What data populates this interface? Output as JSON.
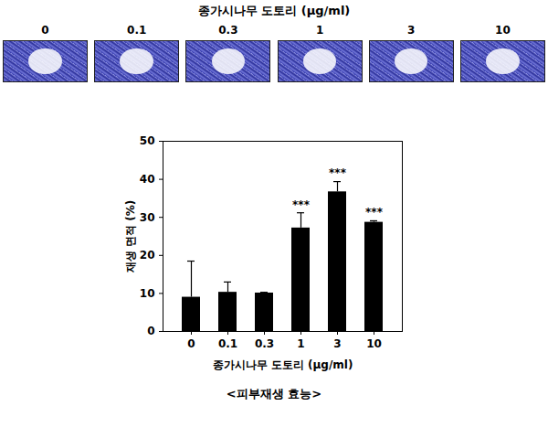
{
  "image_panel": {
    "title": "종가시나무 도토리 (μg/ml)",
    "labels": [
      "0",
      "0.1",
      "0.3",
      "1",
      "3",
      "10"
    ]
  },
  "chart_data": {
    "type": "bar",
    "categories": [
      "0",
      "0.1",
      "0.3",
      "1",
      "3",
      "10"
    ],
    "values": [
      9,
      10.3,
      10.1,
      27.2,
      36.7,
      28.7
    ],
    "errors": [
      9.5,
      2.7,
      0.2,
      4,
      2.7,
      0.4
    ],
    "color": "#000000",
    "x_label": "종가시나무 도토리 (μg/ml)",
    "y_label": "재생 면적 (%)",
    "ylim": [
      0,
      50
    ],
    "yticks": [
      0,
      10,
      20,
      30,
      40,
      50
    ],
    "grid": false,
    "annotations": [
      {
        "category": "1",
        "text": "***"
      },
      {
        "category": "3",
        "text": "***"
      },
      {
        "category": "10",
        "text": "***"
      }
    ]
  },
  "caption": "<피부재생 효능>"
}
